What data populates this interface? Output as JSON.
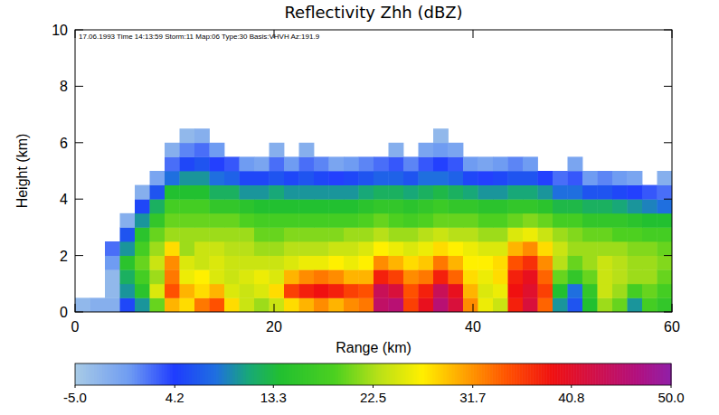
{
  "chart_data": {
    "type": "heatmap",
    "title": "Reflectivity Zhh (dBZ)",
    "subtitle": "17.06.1993 Time 14:13:59 Storm:11 Map:06 Type:30 Basis:VHVH Az:191.9",
    "x_label": "Range (km)",
    "y_label": "Height (km)",
    "xlim": [
      0,
      60
    ],
    "ylim": [
      0,
      10
    ],
    "xticks": [
      0,
      20,
      40,
      60
    ],
    "yticks": [
      0,
      2,
      4,
      6,
      8,
      10
    ],
    "x_bins": [
      0,
      1.5,
      3,
      4.5,
      6,
      7.5,
      9,
      10.5,
      12,
      13.5,
      15,
      16.5,
      18,
      19.5,
      21,
      22.5,
      24,
      25.5,
      27,
      28.5,
      30,
      31.5,
      33,
      34.5,
      36,
      37.5,
      39,
      40.5,
      42,
      43.5,
      45,
      46.5,
      48,
      49.5,
      51,
      52.5,
      54,
      55.5,
      57,
      58.5,
      60
    ],
    "y_bins": [
      0,
      0.5,
      1,
      1.5,
      2,
      2.5,
      3,
      3.5,
      4,
      4.5,
      5,
      5.5,
      6,
      6.5
    ],
    "values": [
      [
        -3,
        null,
        null,
        null,
        null,
        null,
        null,
        null,
        null,
        null,
        null,
        null,
        null
      ],
      [
        -2,
        null,
        null,
        null,
        null,
        null,
        null,
        null,
        null,
        null,
        null,
        null,
        null
      ],
      [
        -2,
        -3,
        -3,
        0,
        2,
        null,
        null,
        null,
        null,
        null,
        null,
        null,
        null
      ],
      [
        5,
        10,
        12,
        15,
        10,
        6,
        -2,
        null,
        null,
        null,
        null,
        null,
        null
      ],
      [
        10,
        15,
        18,
        20,
        18,
        15,
        10,
        5,
        -2,
        null,
        null,
        null,
        null
      ],
      [
        20,
        25,
        22,
        24,
        22,
        20,
        16,
        12,
        6,
        -1,
        null,
        null,
        null
      ],
      [
        30,
        35,
        33,
        32,
        28,
        22,
        20,
        18,
        14,
        8,
        2,
        -2,
        null
      ],
      [
        28,
        30,
        26,
        25,
        22,
        22,
        20,
        18,
        14,
        10,
        5,
        1,
        -3
      ],
      [
        33,
        28,
        27,
        24,
        24,
        22,
        20,
        18,
        14,
        10,
        6,
        2,
        -2
      ],
      [
        35,
        30,
        25,
        25,
        24,
        22,
        20,
        16,
        12,
        8,
        4,
        0,
        null
      ],
      [
        28,
        25,
        24,
        24,
        23,
        22,
        20,
        16,
        12,
        7,
        3,
        null,
        null
      ],
      [
        24,
        24,
        25,
        24,
        23,
        22,
        19,
        15,
        10,
        5,
        0,
        null,
        null
      ],
      [
        22,
        25,
        26,
        24,
        22,
        20,
        18,
        14,
        10,
        5,
        -1,
        null,
        null
      ],
      [
        24,
        28,
        25,
        24,
        22,
        20,
        18,
        14,
        11,
        6,
        2,
        -2,
        null
      ],
      [
        28,
        36,
        30,
        25,
        23,
        21,
        18,
        14,
        10,
        5,
        0,
        null,
        null
      ],
      [
        30,
        38,
        32,
        26,
        23,
        21,
        18,
        14,
        10,
        6,
        2,
        -2,
        null
      ],
      [
        32,
        39,
        33,
        26,
        23,
        21,
        18,
        14,
        10,
        5,
        1,
        null,
        null
      ],
      [
        30,
        38,
        32,
        27,
        24,
        21,
        18,
        14,
        10,
        4,
        -1,
        null,
        null
      ],
      [
        32,
        36,
        30,
        26,
        24,
        22,
        18,
        14,
        10,
        5,
        0,
        null,
        null
      ],
      [
        33,
        35,
        30,
        27,
        25,
        22,
        19,
        15,
        11,
        6,
        1,
        null,
        null
      ],
      [
        45,
        44,
        38,
        32,
        27,
        23,
        20,
        16,
        12,
        7,
        2,
        null,
        null
      ],
      [
        46,
        42,
        36,
        30,
        26,
        22,
        19,
        16,
        12,
        7,
        3,
        -2,
        null
      ],
      [
        36,
        35,
        32,
        28,
        25,
        22,
        18,
        15,
        11,
        6,
        1,
        null,
        null
      ],
      [
        40,
        38,
        33,
        29,
        26,
        23,
        19,
        16,
        12,
        8,
        3,
        -1,
        null
      ],
      [
        46,
        44,
        38,
        33,
        28,
        24,
        20,
        17,
        13,
        8,
        4,
        0,
        -3
      ],
      [
        42,
        40,
        34,
        30,
        27,
        23,
        20,
        16,
        12,
        7,
        3,
        -1,
        null
      ],
      [
        32,
        30,
        28,
        27,
        26,
        23,
        20,
        16,
        11,
        5,
        0,
        null,
        null
      ],
      [
        26,
        25,
        26,
        27,
        25,
        22,
        19,
        15,
        10,
        4,
        -1,
        null,
        null
      ],
      [
        24,
        26,
        28,
        28,
        25,
        22,
        19,
        15,
        10,
        5,
        0,
        null,
        null
      ],
      [
        38,
        39,
        38,
        35,
        30,
        25,
        20,
        16,
        11,
        6,
        1,
        null,
        null
      ],
      [
        42,
        41,
        40,
        37,
        32,
        26,
        21,
        16,
        11,
        6,
        0,
        null,
        null
      ],
      [
        34,
        36,
        34,
        32,
        28,
        24,
        20,
        15,
        10,
        4,
        null,
        null,
        null
      ],
      [
        10,
        14,
        20,
        23,
        24,
        22,
        18,
        13,
        8,
        2,
        null,
        null,
        null
      ],
      [
        6,
        8,
        16,
        20,
        22,
        21,
        18,
        13,
        8,
        3,
        -1,
        null,
        null
      ],
      [
        14,
        16,
        20,
        22,
        22,
        20,
        16,
        12,
        6,
        0,
        null,
        null,
        null
      ],
      [
        22,
        24,
        24,
        24,
        22,
        20,
        16,
        12,
        6,
        1,
        null,
        null,
        null
      ],
      [
        20,
        22,
        23,
        23,
        22,
        19,
        16,
        11,
        5,
        0,
        null,
        null,
        null
      ],
      [
        10,
        18,
        22,
        22,
        21,
        19,
        15,
        10,
        4,
        -1,
        null,
        null,
        null
      ],
      [
        18,
        20,
        22,
        22,
        21,
        18,
        14,
        9,
        3,
        null,
        null,
        null,
        null
      ],
      [
        16,
        18,
        20,
        21,
        20,
        18,
        14,
        8,
        2,
        -2,
        null,
        null,
        null
      ]
    ],
    "colorbar_lim": [
      -5,
      50
    ],
    "colorbar_ticks": [
      {
        "value": -5,
        "label": "-5.0"
      },
      4.2,
      13.3,
      22.5,
      31.7,
      40.8,
      {
        "value": 50,
        "label": "50.0"
      }
    ]
  }
}
